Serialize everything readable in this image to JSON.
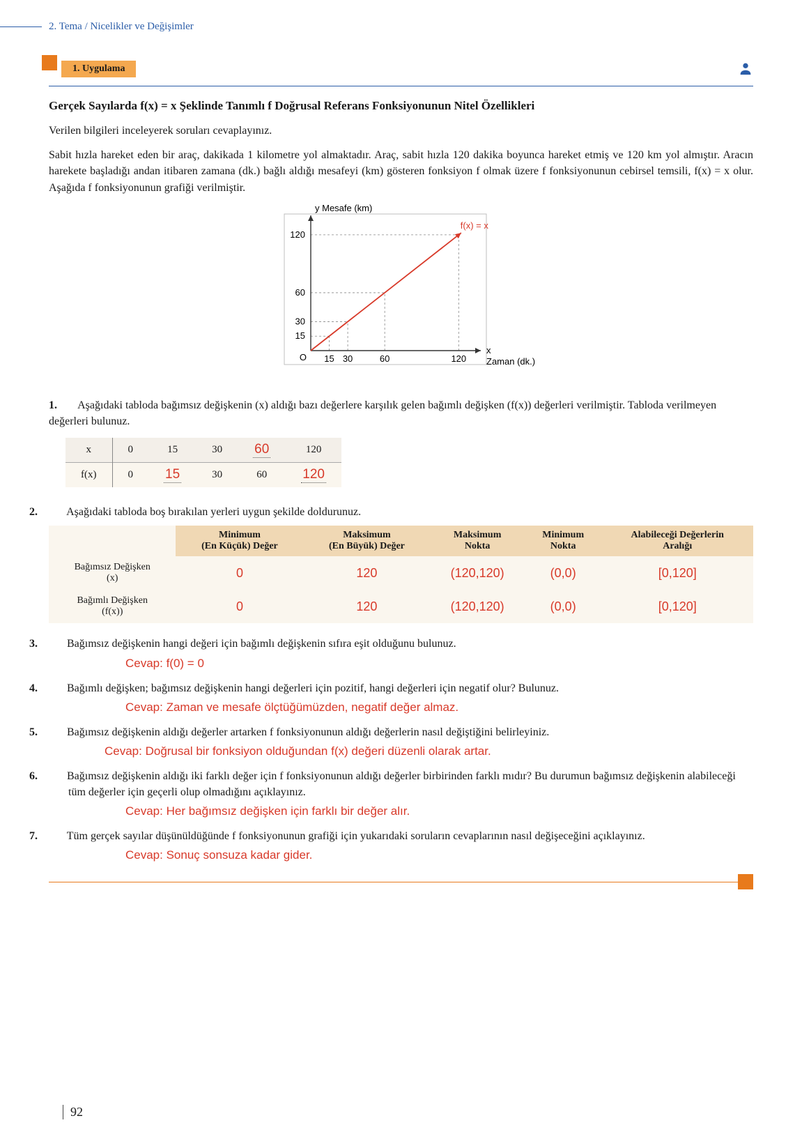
{
  "header": {
    "breadcrumb": "2. Tema / Nicelikler ve Değişimler"
  },
  "section": {
    "badge": "1. Uygulama"
  },
  "subtitle": "Gerçek Sayılarda  f(x) = x  Şeklinde Tanımlı f Doğrusal Referans Fonksiyonunun Nitel Özellikleri",
  "intro1": "Verilen bilgileri inceleyerek soruları cevaplayınız.",
  "intro2": "Sabit hızla hareket eden bir araç, dakikada 1 kilometre yol almaktadır. Araç, sabit hızla 120 dakika boyunca hareket etmiş ve 120 km yol almıştır. Aracın harekete başladığı andan itibaren zamana (dk.) bağlı aldığı mesafeyi (km) gösteren fonksiyon f olmak üzere f fonksiyonunun cebirsel temsili, f(x) = x olur. Aşağıda f fonksiyonunun grafiği verilmiştir.",
  "graph": {
    "y_label": "y Mesafe (km)",
    "x_label_axis": "x",
    "x_label_sub": "Zaman (dk.)",
    "fn_label": "f(x) = x",
    "origin": "O",
    "x_ticks": [
      "15",
      "30",
      "60",
      "120"
    ],
    "y_ticks": [
      "15",
      "30",
      "60",
      "120"
    ],
    "line_color": "#d83a2a",
    "axis_color": "#333333",
    "grid_color": "#d6d6d6",
    "border_color": "#bfbfbf",
    "font_family": "Arial, Helvetica, sans-serif"
  },
  "q1": {
    "num": "1.",
    "text": "Aşağıdaki tabloda bağımsız değişkenin (x) aldığı bazı değerlere karşılık gelen bağımlı değişken (f(x)) değerleri verilmiştir. Tabloda verilmeyen değerleri bulunuz."
  },
  "table1": {
    "row_x_label": "x",
    "row_fx_label": "f(x)",
    "x_vals": [
      "0",
      "15",
      "30",
      "",
      "120"
    ],
    "x_ans": [
      "",
      "",
      "",
      "60",
      ""
    ],
    "fx_vals": [
      "0",
      "",
      "30",
      "60",
      ""
    ],
    "fx_ans": [
      "",
      "15",
      "",
      "",
      "120"
    ]
  },
  "q2": {
    "num": "2.",
    "text": "Aşağıdaki tabloda boş bırakılan yerleri uygun şekilde doldurunuz."
  },
  "table2": {
    "blank_header": "",
    "headers": [
      "Minimum\n(En Küçük) Değer",
      "Maksimum\n(En Büyük) Değer",
      "Maksimum\nNokta",
      "Minimum\nNokta",
      "Alabileceği Değerlerin\nAralığı"
    ],
    "rows": [
      {
        "label": "Bağımsız Değişken\n(x)",
        "cells": [
          "0",
          "120",
          "(120,120)",
          "(0,0)",
          "[0,120]"
        ]
      },
      {
        "label": "Bağımlı Değişken\n(f(x))",
        "cells": [
          "0",
          "120",
          "(120,120)",
          "(0,0)",
          "[0,120]"
        ]
      }
    ]
  },
  "q3": {
    "num": "3.",
    "text": "Bağımsız değişkenin hangi değeri için bağımlı değişkenin sıfıra eşit olduğunu bulunuz.",
    "answer": "Cevap: f(0) = 0"
  },
  "q4": {
    "num": "4.",
    "text": "Bağımlı değişken; bağımsız değişkenin hangi değerleri için pozitif, hangi değerleri için negatif olur? Bulunuz.",
    "answer": "Cevap: Zaman ve mesafe ölçtüğümüzden, negatif değer almaz."
  },
  "q5": {
    "num": "5.",
    "text": "Bağımsız değişkenin aldığı değerler artarken f fonksiyonunun aldığı değerlerin nasıl değiştiğini belirleyiniz.",
    "answer": "Cevap: Doğrusal bir fonksiyon olduğundan f(x) değeri düzenli olarak artar."
  },
  "q6": {
    "num": "6.",
    "text": "Bağımsız değişkenin aldığı iki farklı değer için f fonksiyonunun aldığı değerler birbirinden farklı mıdır? Bu durumun bağımsız değişkenin alabileceği tüm değerler için geçerli olup olmadığını açıklayınız.",
    "answer": "Cevap: Her bağımsız değişken için farklı bir değer alır."
  },
  "q7": {
    "num": "7.",
    "text": "Tüm gerçek sayılar düşünüldüğünde f fonksiyonunun grafiği için yukarıdaki soruların cevaplarının nasıl değişeceğini açıklayınız.",
    "answer": "Cevap: Sonuç sonsuza kadar gider."
  },
  "page_number": "92"
}
